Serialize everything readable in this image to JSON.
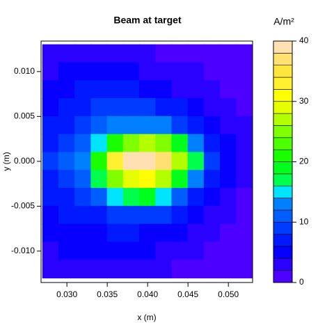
{
  "chart_data": {
    "type": "contour",
    "title": "Beam at target",
    "x_label": "x (m)",
    "y_label": "y (m)",
    "colorbar_title": "A/m²",
    "xlim": [
      0.0268,
      0.053
    ],
    "ylim": [
      -0.0135,
      0.0134
    ],
    "xticks": [
      {
        "value": 0.03,
        "label": "0.030"
      },
      {
        "value": 0.035,
        "label": "0.035"
      },
      {
        "value": 0.04,
        "label": "0.040"
      },
      {
        "value": 0.045,
        "label": "0.045"
      },
      {
        "value": 0.05,
        "label": "0.050"
      }
    ],
    "yticks": [
      {
        "value": -0.01,
        "label": "-0.010"
      },
      {
        "value": -0.005,
        "label": "-0.005"
      },
      {
        "value": 0,
        "label": "0.000"
      },
      {
        "value": 0.005,
        "label": "0.005"
      },
      {
        "value": 0.01,
        "label": "0.010"
      }
    ],
    "x": [
      0.028,
      0.03,
      0.032,
      0.034,
      0.036,
      0.038,
      0.04,
      0.042,
      0.044,
      0.046,
      0.048,
      0.05,
      0.052
    ],
    "y": [
      0.012,
      0.01,
      0.008,
      0.006,
      0.004,
      0.002,
      0.0,
      -0.002,
      -0.004,
      -0.006,
      -0.008,
      -0.01,
      -0.012
    ],
    "z": [
      [
        2,
        3,
        3,
        3,
        2,
        2,
        2,
        1,
        1,
        1,
        1,
        1,
        1
      ],
      [
        3,
        4,
        4,
        5,
        4,
        4,
        3,
        3,
        2,
        2,
        1,
        1,
        1
      ],
      [
        4,
        5,
        6,
        6,
        7,
        6,
        5,
        4,
        3,
        3,
        2,
        1,
        1
      ],
      [
        5,
        6,
        7,
        8,
        9,
        9,
        8,
        7,
        6,
        4,
        3,
        2,
        1
      ],
      [
        6,
        7,
        8,
        10,
        12,
        13,
        13,
        12,
        9,
        7,
        5,
        3,
        2
      ],
      [
        7,
        8,
        10,
        14,
        20,
        24,
        26,
        24,
        18,
        12,
        7,
        4,
        2
      ],
      [
        8,
        10,
        13,
        20,
        33,
        38,
        39,
        36,
        26,
        16,
        9,
        5,
        2
      ],
      [
        7,
        9,
        11,
        16,
        24,
        28,
        30,
        26,
        18,
        12,
        7,
        4,
        2
      ],
      [
        6,
        7,
        8,
        10,
        14,
        16,
        18,
        14,
        10,
        7,
        5,
        3,
        1
      ],
      [
        5,
        6,
        6,
        7,
        8,
        9,
        9,
        8,
        6,
        5,
        3,
        2,
        1
      ],
      [
        4,
        5,
        5,
        5,
        6,
        6,
        5,
        5,
        4,
        3,
        2,
        1,
        1
      ],
      [
        3,
        4,
        4,
        4,
        4,
        4,
        4,
        3,
        3,
        2,
        1,
        1,
        1
      ],
      [
        2,
        3,
        3,
        3,
        2,
        2,
        2,
        2,
        1,
        1,
        1,
        1,
        0
      ]
    ],
    "levels": [
      0,
      2,
      4,
      6,
      8,
      10,
      12,
      14,
      16,
      18,
      20,
      22,
      24,
      26,
      28,
      30,
      32,
      34,
      36,
      38,
      40
    ],
    "colors": [
      "#4C00FF",
      "#2A00FF",
      "#0800FF",
      "#0019FF",
      "#003CFF",
      "#005EFF",
      "#0080FF",
      "#00E5FF",
      "#00FF4D",
      "#00FF1A",
      "#19FF00",
      "#4DFF00",
      "#80FF00",
      "#B3FF00",
      "#E6FF00",
      "#FFFF00",
      "#FFF030",
      "#FFE53C",
      "#FFE070",
      "#FFE0B3"
    ],
    "colorbar_ticks": [
      0,
      10,
      20,
      30,
      40
    ]
  }
}
